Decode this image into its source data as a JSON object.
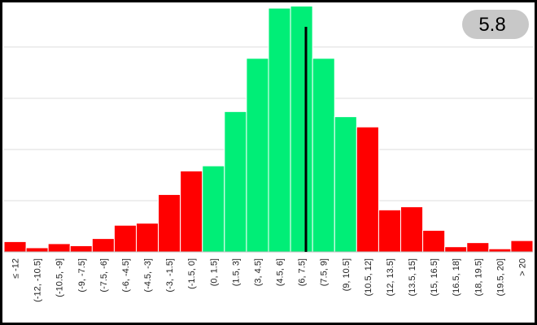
{
  "chart_data": {
    "type": "bar",
    "categories": [
      "≤ -12",
      "(-12, -10.5]",
      "(-10.5, -9]",
      "(-9, -7.5]",
      "(-7.5, -6]",
      "(-6, -4.5]",
      "(-4.5, -3]",
      "(-3, -1.5]",
      "(-1.5, 0]",
      "(0, 1.5]",
      "(1.5, 3]",
      "(3, 4.5]",
      "(4.5, 6]",
      "(6, 7.5]",
      "(7.5, 9]",
      "(9, 10.5]",
      "(10.5, 12]",
      "(12, 13.5]",
      "(13.5, 15]",
      "(15, 16.5]",
      "(16.5, 18]",
      "(18, 19.5]",
      "(19.5, 20]",
      "> 20"
    ],
    "values": [
      1,
      0.4,
      0.8,
      0.6,
      1.3,
      2.6,
      2.8,
      5.6,
      7.9,
      8.4,
      13.7,
      18.9,
      23.8,
      24,
      18.9,
      13.2,
      12.2,
      4.1,
      4.4,
      2.1,
      0.5,
      0.9,
      0.3,
      1.1
    ],
    "colors": [
      "#ff0000",
      "#ff0000",
      "#ff0000",
      "#ff0000",
      "#ff0000",
      "#ff0000",
      "#ff0000",
      "#ff0000",
      "#ff0000",
      "#00ee77",
      "#00ee77",
      "#00ee77",
      "#00ee77",
      "#00ee77",
      "#00ee77",
      "#00ee77",
      "#ff0000",
      "#ff0000",
      "#ff0000",
      "#ff0000",
      "#ff0000",
      "#ff0000",
      "#ff0000",
      "#ff0000"
    ],
    "ylim": [
      0,
      24.2
    ],
    "yticks": [
      5,
      10,
      15,
      20
    ],
    "grid": true,
    "marker": {
      "value": 5.8,
      "label": "5.8"
    }
  }
}
